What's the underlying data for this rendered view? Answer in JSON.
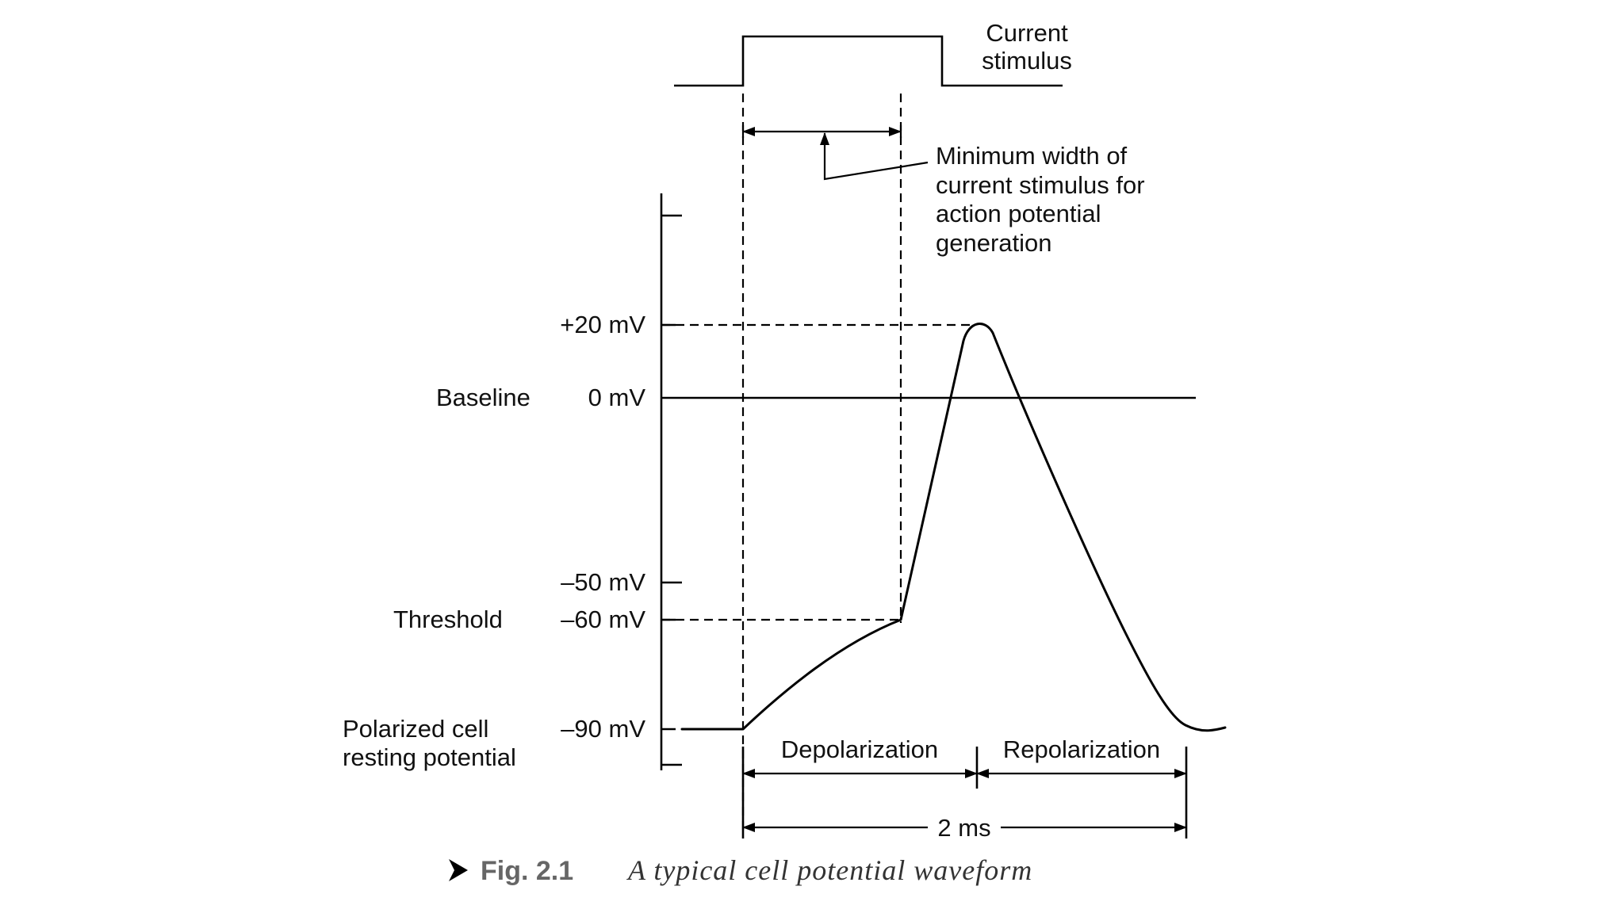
{
  "stimulus": {
    "label_line1": "Current",
    "label_line2": "stimulus"
  },
  "min_width_note": {
    "line1": "Minimum width of",
    "line2": "current stimulus for",
    "line3": "action potential",
    "line4": "generation"
  },
  "levels": {
    "peak": "+20 mV",
    "baseline_name": "Baseline",
    "baseline_value": "0 mV",
    "minus50": "–50 mV",
    "threshold_name": "Threshold",
    "threshold_value": "–60 mV",
    "resting_name_line1": "Polarized cell",
    "resting_name_line2": "resting potential",
    "resting_value": "–90 mV"
  },
  "phases": {
    "depolarization": "Depolarization",
    "repolarization": "Repolarization",
    "duration": "2 ms"
  },
  "caption": {
    "number": "Fig. 2.1",
    "title": "A typical cell potential waveform"
  },
  "waveform": {
    "resting_mV": -90,
    "threshold_mV": -60,
    "peak_mV": 20,
    "baseline_mV": 0,
    "duration_ms": 2
  }
}
